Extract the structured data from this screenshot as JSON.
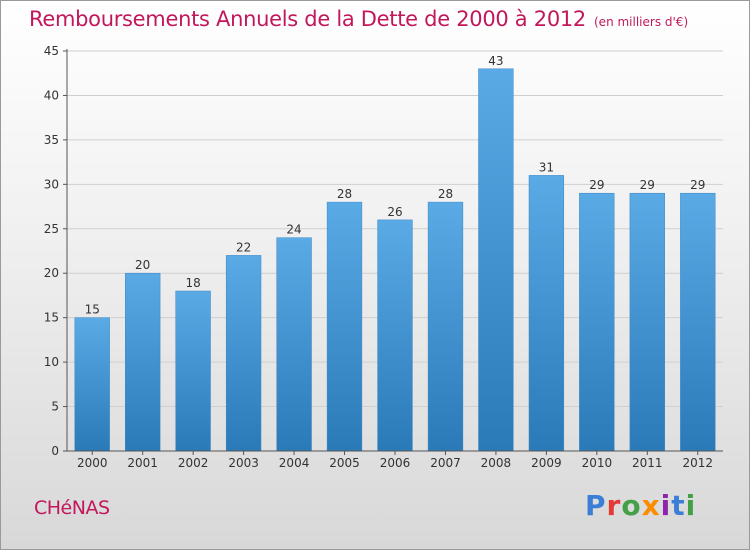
{
  "header": {
    "title": "Remboursements Annuels de la Dette de 2000 à 2012",
    "unit": "(en milliers d'€)"
  },
  "footer": {
    "town": "CHéNAS",
    "logo_text": "Proxiti",
    "logo_colors": [
      "#3a7fd5",
      "#e53935",
      "#43a047",
      "#fb8c00",
      "#8e24aa",
      "#3a7fd5",
      "#43a047"
    ]
  },
  "colors": {
    "accent": "#c2185b",
    "bar_top": "#5aaae6",
    "bar_bottom": "#2a7ab8",
    "axis": "#555555",
    "grid": "#cfcfcf"
  },
  "chart_data": {
    "type": "bar",
    "categories": [
      "2000",
      "2001",
      "2002",
      "2003",
      "2004",
      "2005",
      "2006",
      "2007",
      "2008",
      "2009",
      "2010",
      "2011",
      "2012"
    ],
    "values": [
      15,
      20,
      18,
      22,
      24,
      28,
      26,
      28,
      43,
      31,
      29,
      29,
      29
    ],
    "ylim": [
      0,
      45
    ],
    "yticks": [
      0,
      5,
      10,
      15,
      20,
      25,
      30,
      35,
      40,
      45
    ],
    "grid": true,
    "data_labels": true
  }
}
